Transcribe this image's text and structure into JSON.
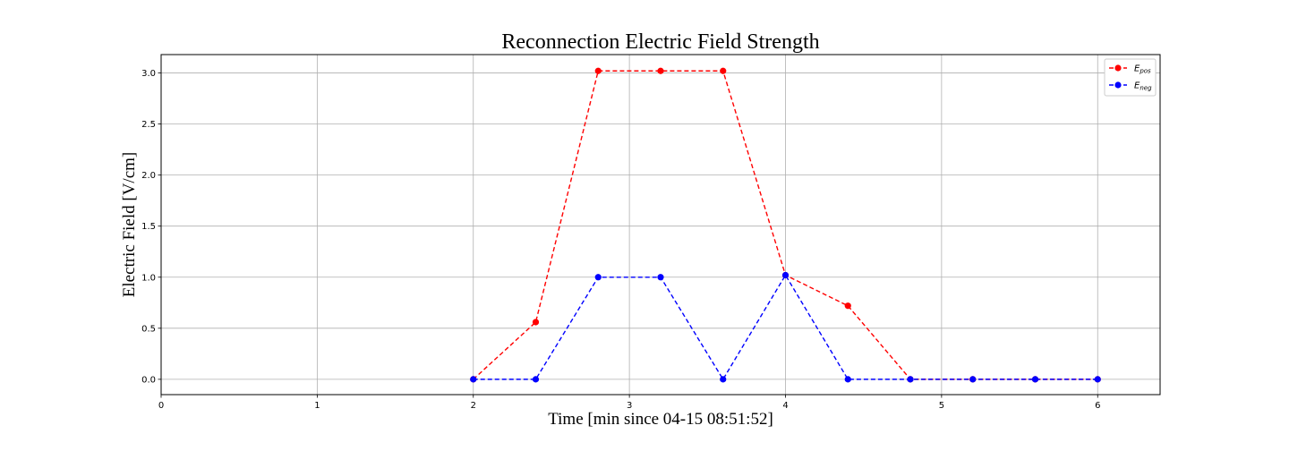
{
  "chart_data": {
    "type": "line",
    "title": "Reconnection Electric Field Strength",
    "xlabel": "Time [min since 04-15 08:51:52]",
    "ylabel": "Electric Field [V/cm]",
    "xlim": [
      0,
      6.4
    ],
    "ylim": [
      -0.15,
      3.18
    ],
    "xticks": [
      "0",
      "1",
      "2",
      "3",
      "4",
      "5",
      "6"
    ],
    "yticks": [
      "0.0",
      "0.5",
      "1.0",
      "1.5",
      "2.0",
      "2.5",
      "3.0"
    ],
    "grid": true,
    "legend_position": "top-right",
    "x": [
      2.0,
      2.4,
      2.8,
      3.2,
      3.6,
      4.0,
      4.4,
      4.8,
      5.2,
      5.6,
      6.0
    ],
    "series": [
      {
        "name": "E_pos",
        "legend_main": "E",
        "legend_sub": "pos",
        "color": "#ff0000",
        "linestyle": "dashed",
        "marker": "circle",
        "values": [
          0.0,
          0.56,
          3.02,
          3.02,
          3.02,
          1.02,
          0.72,
          0.0,
          0.0,
          0.0,
          0.0
        ]
      },
      {
        "name": "E_neg",
        "legend_main": "E",
        "legend_sub": "neg",
        "color": "#0000ff",
        "linestyle": "dashed",
        "marker": "circle",
        "values": [
          0.0,
          0.0,
          1.0,
          1.0,
          0.0,
          1.02,
          0.0,
          0.0,
          0.0,
          0.0,
          0.0
        ]
      }
    ]
  }
}
